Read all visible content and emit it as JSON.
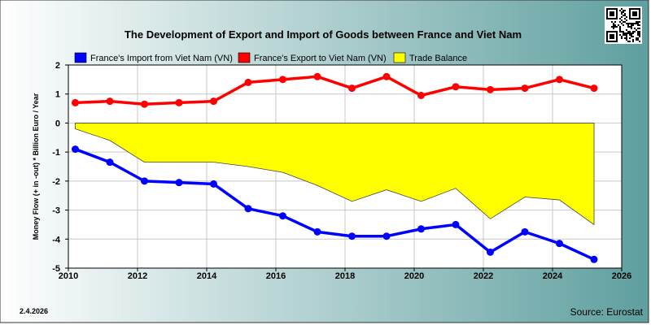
{
  "chart_data": {
    "type": "line",
    "title": "The Development of Export and Import of Goods between France and Viet Nam",
    "ylabel": "Money Flow (+ in -out) * Billion Euro / Year",
    "xlabel": "",
    "xlim": [
      2010,
      2026
    ],
    "ylim": [
      -5,
      2
    ],
    "x_ticks": [
      "2010",
      "2012",
      "2014",
      "2016",
      "2018",
      "2020",
      "2022",
      "2024",
      "2026"
    ],
    "y_ticks": [
      "2",
      "1",
      "0",
      "-1",
      "-2",
      "-3",
      "-4",
      "-5"
    ],
    "grid": true,
    "legend_position": "top",
    "x": [
      2010.2,
      2011.2,
      2012.2,
      2013.2,
      2014.2,
      2015.2,
      2016.2,
      2017.2,
      2018.2,
      2019.2,
      2020.2,
      2021.2,
      2022.2,
      2023.2,
      2024.2,
      2025.2
    ],
    "series": [
      {
        "name": "France's Import from Viet Nam (VN)",
        "color": "#0000ff",
        "kind": "line",
        "values": [
          -0.9,
          -1.35,
          -2.0,
          -2.05,
          -2.1,
          -2.95,
          -3.2,
          -3.75,
          -3.9,
          -3.9,
          -3.65,
          -3.5,
          -4.45,
          -3.75,
          -4.15,
          -4.7
        ]
      },
      {
        "name": "France's Export to Viet Nam (VN)",
        "color": "#ff0000",
        "kind": "line",
        "values": [
          0.7,
          0.75,
          0.65,
          0.7,
          0.75,
          1.4,
          1.5,
          1.6,
          1.2,
          1.6,
          0.95,
          1.25,
          1.15,
          1.2,
          1.5,
          1.2
        ]
      },
      {
        "name": "Trade Balance",
        "color": "#ffff00",
        "kind": "area",
        "values": [
          -0.2,
          -0.6,
          -1.35,
          -1.35,
          -1.35,
          -1.5,
          -1.7,
          -2.15,
          -2.7,
          -2.3,
          -2.7,
          -2.25,
          -3.3,
          -2.55,
          -2.65,
          -3.5
        ]
      }
    ],
    "date_stamp": "2.4.2026",
    "source": "Source: Eurostat",
    "background": {
      "left": "#ffffff",
      "right": "#5f9f9f"
    }
  },
  "qr_icon": "qr-code-icon"
}
